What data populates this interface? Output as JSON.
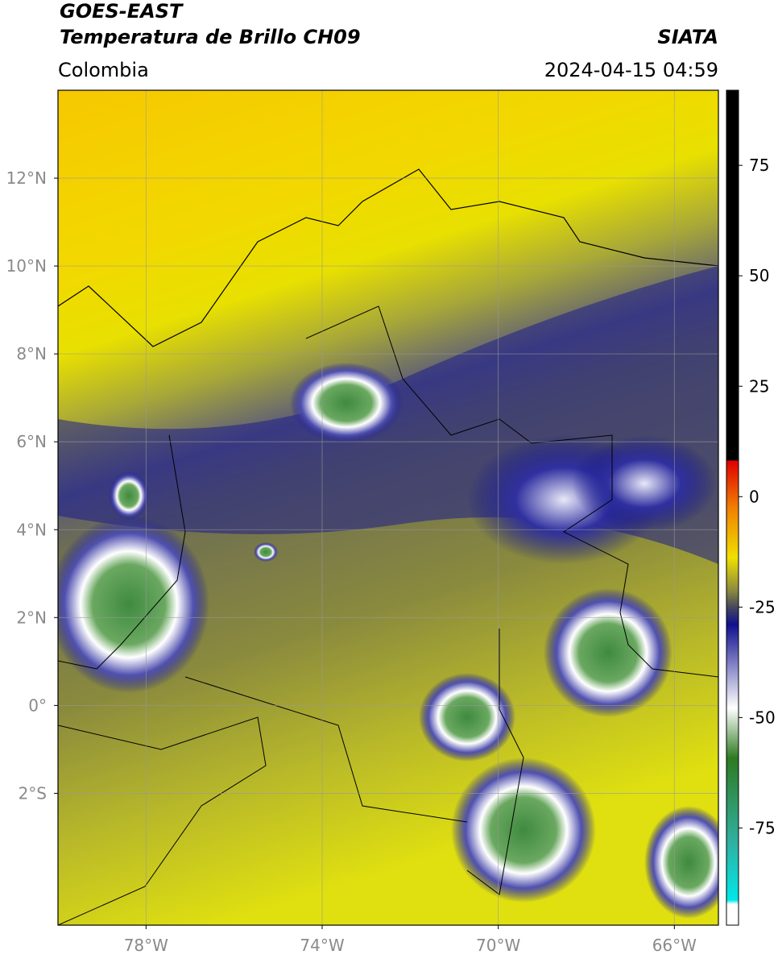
{
  "header": {
    "title": "GOES-EAST",
    "subtitle": "Temperatura de Brillo CH09",
    "source": "SIATA",
    "region": "Colombia",
    "timestamp": "2024-04-15 04:59"
  },
  "map": {
    "xlim": [
      -80,
      -65
    ],
    "ylim": [
      -5,
      14
    ],
    "xticks": [
      {
        "value": -78,
        "label": "78°W"
      },
      {
        "value": -74,
        "label": "74°W"
      },
      {
        "value": -70,
        "label": "70°W"
      },
      {
        "value": -66,
        "label": "66°W"
      }
    ],
    "yticks": [
      {
        "value": 12,
        "label": "12°N"
      },
      {
        "value": 10,
        "label": "10°N"
      },
      {
        "value": 8,
        "label": "8°N"
      },
      {
        "value": 6,
        "label": "6°N"
      },
      {
        "value": 4,
        "label": "4°N"
      },
      {
        "value": 2,
        "label": "2°N"
      },
      {
        "value": 0,
        "label": "0°"
      },
      {
        "value": -2,
        "label": "2°S"
      }
    ],
    "grid": true
  },
  "colorbar": {
    "lim": [
      -97,
      92
    ],
    "ticks": [
      75,
      50,
      25,
      0,
      -25,
      -50,
      -75
    ]
  }
}
